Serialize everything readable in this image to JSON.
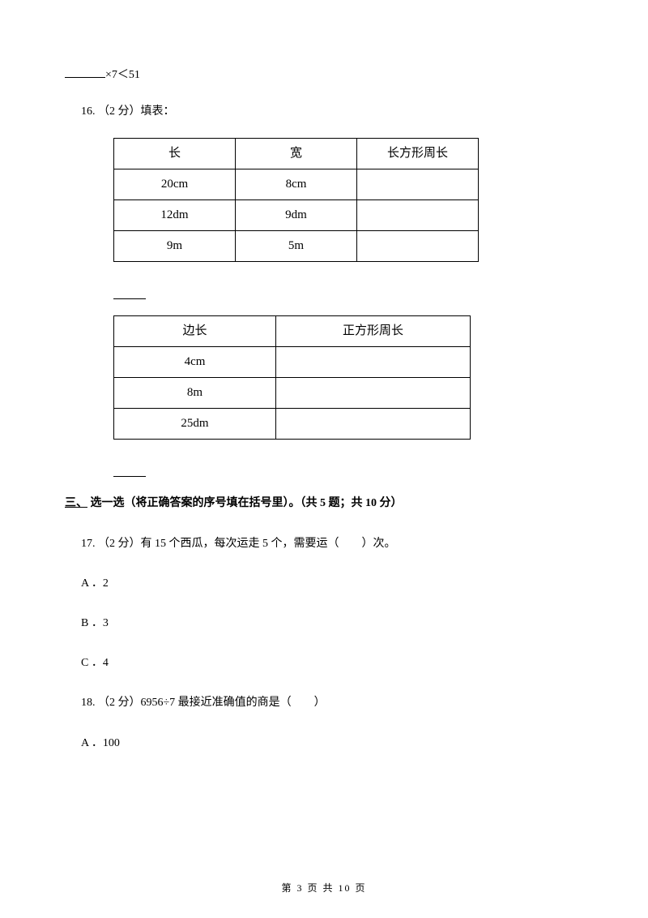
{
  "q15": {
    "expr": "×7＜51"
  },
  "q16": {
    "prefix": "16. （2 分）",
    "label": "填表："
  },
  "table1": {
    "headers": [
      "长",
      "宽",
      "长方形周长"
    ],
    "rows": [
      [
        "20cm",
        "8cm",
        ""
      ],
      [
        "12dm",
        "9dm",
        ""
      ],
      [
        "9m",
        "5m",
        ""
      ]
    ]
  },
  "table2": {
    "headers": [
      "边长",
      "正方形周长"
    ],
    "rows": [
      [
        "4cm",
        ""
      ],
      [
        "8m",
        ""
      ],
      [
        "25dm",
        ""
      ]
    ]
  },
  "section3": {
    "num": "三、",
    "title": " 选一选（将正确答案的序号填在括号里）。（共 5 题；共 10 分）"
  },
  "q17": {
    "text": "17. （2 分）有 15 个西瓜，每次运走 5 个，需要运（　　）次。",
    "a": "A ．2",
    "b": "B ．3",
    "c": "C ．4"
  },
  "q18": {
    "text": "18. （2 分）6956÷7 最接近准确值的商是（　　）",
    "a": "A ．100"
  },
  "footer": "第 3 页 共 10 页"
}
